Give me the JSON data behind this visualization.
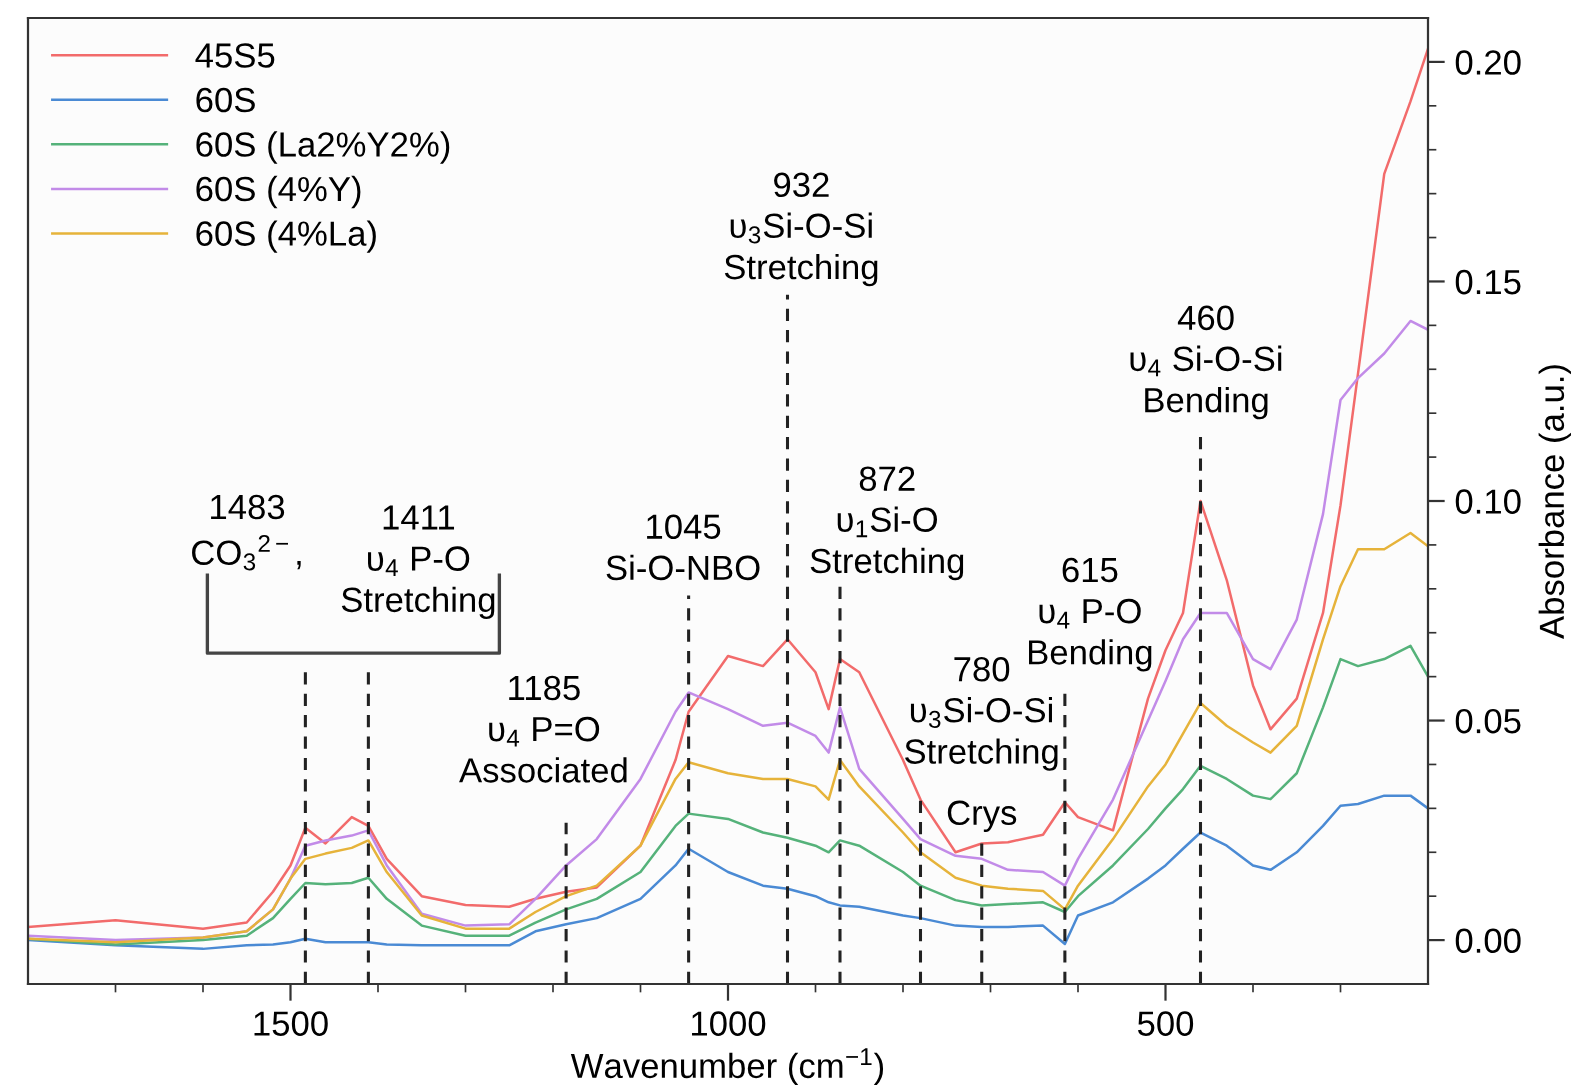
{
  "chart_data": {
    "type": "line",
    "xlabel": "Wavenumber (cm$^{−1}$)",
    "ylabel": "Absorbance (a.u.)",
    "x": [
      1800,
      1700,
      1600,
      1550,
      1520,
      1500,
      1483,
      1460,
      1430,
      1411,
      1390,
      1350,
      1300,
      1250,
      1220,
      1185,
      1150,
      1100,
      1060,
      1045,
      1000,
      960,
      932,
      900,
      885,
      872,
      850,
      800,
      780,
      740,
      710,
      680,
      640,
      615,
      600,
      560,
      520,
      500,
      480,
      460,
      430,
      400,
      380,
      350,
      320,
      300,
      280,
      250,
      220,
      200
    ],
    "series": [
      {
        "name": "45S5",
        "color": "#f26b6b",
        "values": [
          0.003,
          0.0045,
          0.0026,
          0.004,
          0.011,
          0.017,
          0.0256,
          0.022,
          0.028,
          0.026,
          0.0185,
          0.01,
          0.008,
          0.0076,
          0.0094,
          0.011,
          0.012,
          0.0215,
          0.041,
          0.052,
          0.0647,
          0.0624,
          0.0685,
          0.061,
          0.0526,
          0.064,
          0.061,
          0.041,
          0.032,
          0.02,
          0.022,
          0.0223,
          0.024,
          0.0314,
          0.028,
          0.025,
          0.055,
          0.066,
          0.0745,
          0.1,
          0.082,
          0.058,
          0.048,
          0.055,
          0.0745,
          0.099,
          0.129,
          0.1745,
          0.191,
          0.203
        ]
      },
      {
        "name": "60S",
        "color": "#4a8ad4",
        "values": [
          0.0,
          -0.0012,
          -0.002,
          -0.0012,
          -0.001,
          -0.0005,
          0.0003,
          -0.0005,
          -0.0005,
          -0.0005,
          -0.001,
          -0.0012,
          -0.0012,
          -0.0012,
          0.002,
          0.0036,
          0.005,
          0.0094,
          0.017,
          0.0208,
          0.0155,
          0.0124,
          0.0117,
          0.01,
          0.0086,
          0.0079,
          0.0076,
          0.0056,
          0.005,
          0.0033,
          0.003,
          0.003,
          0.0033,
          -0.0009,
          0.0056,
          0.0086,
          0.014,
          0.017,
          0.0208,
          0.0245,
          0.0215,
          0.017,
          0.016,
          0.02,
          0.026,
          0.0306,
          0.031,
          0.0329,
          0.0329,
          0.03
        ]
      },
      {
        "name": "60S (La2%Y2%)",
        "color": "#55b27a",
        "values": [
          0.0003,
          -0.001,
          0.0,
          0.001,
          0.005,
          0.0094,
          0.013,
          0.0127,
          0.013,
          0.0142,
          0.0094,
          0.0033,
          0.001,
          0.001,
          0.004,
          0.007,
          0.0094,
          0.0155,
          0.026,
          0.0288,
          0.0276,
          0.0245,
          0.0233,
          0.0215,
          0.02,
          0.0227,
          0.0215,
          0.0155,
          0.0124,
          0.0091,
          0.0079,
          0.0082,
          0.0086,
          0.0064,
          0.01,
          0.017,
          0.0253,
          0.03,
          0.0344,
          0.0397,
          0.0367,
          0.0329,
          0.0321,
          0.038,
          0.053,
          0.064,
          0.0624,
          0.064,
          0.067,
          0.06
        ]
      },
      {
        "name": "60S (4%Y)",
        "color": "#c28be8",
        "values": [
          0.001,
          0.0,
          0.0006,
          0.002,
          0.007,
          0.014,
          0.0215,
          0.0227,
          0.0238,
          0.025,
          0.017,
          0.006,
          0.0033,
          0.0036,
          0.0094,
          0.017,
          0.023,
          0.0367,
          0.052,
          0.0564,
          0.0526,
          0.0488,
          0.0495,
          0.0465,
          0.0427,
          0.053,
          0.039,
          0.0276,
          0.023,
          0.0192,
          0.0185,
          0.016,
          0.0155,
          0.0124,
          0.0185,
          0.032,
          0.05,
          0.059,
          0.0685,
          0.0745,
          0.0745,
          0.064,
          0.0617,
          0.073,
          0.097,
          0.123,
          0.128,
          0.1336,
          0.141,
          0.139
        ]
      },
      {
        "name": "60S (4%La)",
        "color": "#e6b33a",
        "values": [
          0.0003,
          -0.0005,
          0.0006,
          0.002,
          0.007,
          0.014,
          0.0185,
          0.0197,
          0.021,
          0.0227,
          0.0155,
          0.0056,
          0.0026,
          0.0026,
          0.0064,
          0.01,
          0.0124,
          0.0215,
          0.0367,
          0.0405,
          0.038,
          0.0367,
          0.0367,
          0.035,
          0.032,
          0.041,
          0.035,
          0.0245,
          0.02,
          0.0142,
          0.0124,
          0.0117,
          0.0112,
          0.007,
          0.0124,
          0.023,
          0.035,
          0.04,
          0.047,
          0.054,
          0.0488,
          0.045,
          0.0427,
          0.0488,
          0.0685,
          0.0806,
          0.089,
          0.089,
          0.0927,
          0.0897
        ]
      }
    ],
    "xlim": [
      1800,
      200
    ],
    "ylim": [
      -0.01,
      0.21
    ],
    "xticks": [
      {
        "value": 1700,
        "label": null
      },
      {
        "value": 1600,
        "label": null
      },
      1500,
      {
        "value": 1400,
        "label": null
      },
      {
        "value": 1300,
        "label": null
      },
      {
        "value": 1200,
        "label": null
      },
      {
        "value": 1100,
        "label": null
      },
      1000,
      {
        "value": 900,
        "label": null
      },
      {
        "value": 800,
        "label": null
      },
      {
        "value": 700,
        "label": null
      },
      {
        "value": 600,
        "label": null
      },
      500,
      {
        "value": 400,
        "label": null
      },
      {
        "value": 300,
        "label": null
      }
    ],
    "yticks": [
      {
        "value": 0.0,
        "label": "0.00"
      },
      {
        "value": 0.01,
        "label": null
      },
      {
        "value": 0.02,
        "label": null
      },
      {
        "value": 0.03,
        "label": null
      },
      {
        "value": 0.04,
        "label": null
      },
      {
        "value": 0.05,
        "label": "0.05"
      },
      {
        "value": 0.06,
        "label": null
      },
      {
        "value": 0.07,
        "label": null
      },
      {
        "value": 0.08,
        "label": null
      },
      {
        "value": 0.09,
        "label": null
      },
      {
        "value": 0.1,
        "label": "0.10"
      },
      {
        "value": 0.11,
        "label": null
      },
      {
        "value": 0.12,
        "label": null
      },
      {
        "value": 0.13,
        "label": null
      },
      {
        "value": 0.14,
        "label": null
      },
      {
        "value": 0.15,
        "label": "0.15"
      },
      {
        "value": 0.16,
        "label": null
      },
      {
        "value": 0.17,
        "label": null
      },
      {
        "value": 0.18,
        "label": null
      },
      {
        "value": 0.19,
        "label": null
      },
      {
        "value": 0.2,
        "label": "0.20"
      }
    ],
    "legend": "top left",
    "ref_lines": [
      {
        "axis": "x",
        "value": 1483,
        "color": "#222222",
        "line_style": "dashed"
      },
      {
        "axis": "x",
        "value": 1411,
        "color": "#222222",
        "line_style": "dashed"
      },
      {
        "axis": "x",
        "value": 1185,
        "color": "#222222",
        "line_style": "dashed"
      },
      {
        "axis": "x",
        "value": 1045,
        "color": "#222222",
        "line_style": "dashed"
      },
      {
        "axis": "x",
        "value": 932,
        "color": "#222222",
        "line_style": "dashed"
      },
      {
        "axis": "x",
        "value": 872,
        "color": "#222222",
        "line_style": "dashed"
      },
      {
        "axis": "x",
        "value": 780,
        "color": "#222222",
        "line_style": "dashed"
      },
      {
        "axis": "x",
        "value": 710,
        "color": "#222222",
        "line_style": "dashed"
      },
      {
        "axis": "x",
        "value": 615,
        "color": "#222222",
        "line_style": "dashed"
      },
      {
        "axis": "x",
        "value": 460,
        "color": "#222222",
        "line_style": "dashed"
      }
    ],
    "annotations": [
      {
        "text": "1483\nCO$_{3}$$^{2−}$,",
        "x": 1483,
        "y": 0.0617
      },
      {
        "text": "1411\nυ$_{4}$ P-O\nStretching",
        "x": 1411,
        "y": 0.063
      },
      {
        "text": "1185\nυ$_{4}$ P=O\nAssociated",
        "x": 1185,
        "y": 0.0267
      },
      {
        "text": "1045\nSi-O-NBO",
        "x": 1045,
        "y": 0.0785
      },
      {
        "text": "932\nυ$_{3}$Si-O-Si\nStretching",
        "x": 932,
        "y": 0.147
      },
      {
        "text": "872\nυ$_{1}$Si-O\nStretching",
        "x": 872,
        "y": 0.0807
      },
      {
        "text": "780\nυ$_{3}$Si-O-Si\nStretching",
        "x": 780,
        "y": 0.0335
      },
      {
        "text": "Crys",
        "x": 710,
        "y": 0.0221
      },
      {
        "text": "615\nυ$_{4}$ P-O\nBending",
        "x": 615,
        "y": 0.058
      },
      {
        "text": "460\nυ$_{4}$ Si-O-Si\nBending",
        "x": 460,
        "y": 0.1148
      }
    ]
  }
}
